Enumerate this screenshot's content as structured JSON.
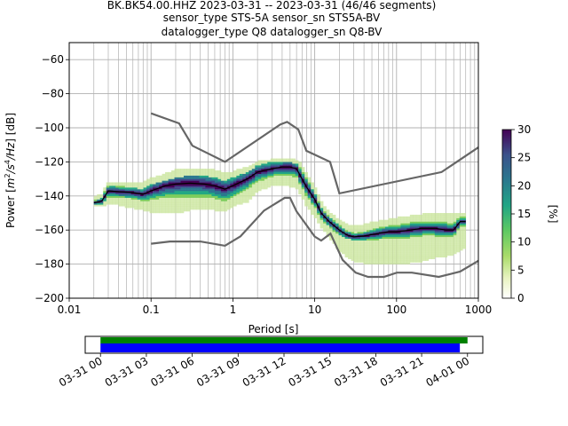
{
  "header": {
    "title_lines": [
      "BK.BK54.00.HHZ   2023-03-31 -- 2023-03-31  (46/46 segments)",
      "sensor_type STS-5A sensor_sn STS5A-BV",
      "datalogger_type Q8 datalogger_sn Q8-BV"
    ]
  },
  "chart_data": [
    {
      "type": "heatmap",
      "xlabel": "Period [s]",
      "ylabel_parts": [
        "Power [",
        "m",
        "2",
        "/s",
        "4",
        "/Hz",
        "] [dB]"
      ],
      "x_scale": "log",
      "xlim": [
        0.01,
        1000
      ],
      "ylim": [
        -200,
        -50
      ],
      "x_ticks": [
        {
          "value": 0.01,
          "label": "0.01"
        },
        {
          "value": 0.1,
          "label": "0.1"
        },
        {
          "value": 1,
          "label": "1"
        },
        {
          "value": 10,
          "label": "10"
        },
        {
          "value": 100,
          "label": "100"
        },
        {
          "value": 1000,
          "label": "1000"
        }
      ],
      "y_ticks": [
        {
          "value": -60,
          "label": "−60"
        },
        {
          "value": -80,
          "label": "−80"
        },
        {
          "value": -100,
          "label": "−100"
        },
        {
          "value": -120,
          "label": "−120"
        },
        {
          "value": -140,
          "label": "−140"
        },
        {
          "value": -160,
          "label": "−160"
        },
        {
          "value": -180,
          "label": "−180"
        },
        {
          "value": -200,
          "label": "−200"
        }
      ],
      "grid": true,
      "colorscale": [
        "#ffffff",
        "#c8e49a",
        "#7ccd5c",
        "#22a884",
        "#2a788e",
        "#414487",
        "#440154"
      ],
      "noise_model_color": "#666666",
      "high_noise_model": {
        "x": [
          0.1,
          0.22,
          0.32,
          0.8,
          3.8,
          4.6,
          6.3,
          7.9,
          15.4,
          20,
          354.8,
          1000
        ],
        "y": [
          -91.5,
          -97.4,
          -110.5,
          -120,
          -98,
          -96.5,
          -101,
          -113.5,
          -120,
          -138.5,
          -126,
          -111.5
        ]
      },
      "low_noise_model": {
        "x": [
          0.1,
          0.17,
          0.4,
          0.8,
          1.24,
          2.4,
          4.3,
          5,
          6,
          10,
          12,
          15.6,
          21.9,
          31.6,
          45,
          70,
          101,
          154,
          328,
          600,
          1000
        ],
        "y": [
          -168,
          -166.7,
          -166.7,
          -169.2,
          -163.7,
          -148.6,
          -141.1,
          -141.1,
          -149,
          -163.8,
          -166.2,
          -162.1,
          -177.5,
          -185,
          -187.5,
          -187.5,
          -185,
          -185,
          -187.5,
          -184.4,
          -178
        ]
      },
      "mode_curve": {
        "x": [
          0.02,
          0.025,
          0.03,
          0.04,
          0.06,
          0.08,
          0.1,
          0.15,
          0.2,
          0.3,
          0.45,
          0.6,
          0.8,
          1,
          1.5,
          2,
          3,
          4,
          5,
          6,
          7,
          8,
          10,
          12,
          15,
          20,
          25,
          30,
          40,
          60,
          80,
          100,
          150,
          200,
          300,
          400,
          500,
          600,
          700
        ],
        "y": [
          -144,
          -143,
          -137,
          -137.5,
          -138,
          -139,
          -137,
          -134,
          -133,
          -132.5,
          -133,
          -134,
          -136,
          -134,
          -130,
          -126,
          -124,
          -123,
          -123,
          -124,
          -130,
          -135,
          -142,
          -150,
          -155,
          -160,
          -163,
          -164,
          -163.5,
          -162,
          -161,
          -161,
          -160,
          -159,
          -159,
          -160,
          -160,
          -155,
          -155
        ]
      },
      "band_x": [
        0.02,
        0.025,
        0.03,
        0.04,
        0.06,
        0.08,
        0.1,
        0.15,
        0.2,
        0.3,
        0.45,
        0.6,
        0.8,
        1,
        1.5,
        2,
        3,
        4,
        5,
        6,
        7,
        8,
        10,
        12,
        15,
        20,
        25,
        30,
        40,
        60,
        80,
        100,
        150,
        200,
        300,
        400,
        500,
        600,
        700
      ],
      "band_low": [
        -145,
        -145,
        -142,
        -142,
        -143,
        -145,
        -145,
        -146,
        -147,
        -146,
        -145,
        -146,
        -147,
        -144,
        -140,
        -134,
        -131,
        -130,
        -131,
        -132,
        -137,
        -142,
        -148,
        -154,
        -159,
        -163,
        -165,
        -166,
        -166,
        -166,
        -165,
        -165,
        -165,
        -164,
        -164,
        -164,
        -164,
        -158,
        -158
      ],
      "band_high": [
        -142,
        -140,
        -134,
        -134,
        -135,
        -136,
        -133,
        -131,
        -129,
        -128,
        -128,
        -129,
        -131,
        -129,
        -126,
        -122,
        -120,
        -120,
        -120,
        -121,
        -125,
        -130,
        -138,
        -146,
        -152,
        -156,
        -159,
        -161,
        -160,
        -158,
        -157,
        -156,
        -155,
        -154,
        -154,
        -154,
        -154,
        -152,
        -152
      ],
      "faint_spread_low": [
        -146,
        -146,
        -144,
        -145,
        -147,
        -148,
        -149,
        -150,
        -150,
        -148,
        -147,
        -148,
        -149,
        -146,
        -143,
        -137,
        -134,
        -133,
        -134,
        -135,
        -140,
        -146,
        -152,
        -158,
        -164,
        -172,
        -176,
        -178,
        -179,
        -180,
        -180,
        -180,
        -179,
        -178,
        -176,
        -175,
        -174,
        -172,
        -170
      ],
      "faint_spread_high": [
        -141,
        -139,
        -132,
        -132,
        -132,
        -132,
        -130,
        -127,
        -125,
        -124,
        -124,
        -125,
        -127,
        -126,
        -123,
        -120,
        -119,
        -118,
        -118,
        -119,
        -122,
        -127,
        -135,
        -143,
        -150,
        -154,
        -157,
        -158,
        -157,
        -155,
        -154,
        -153,
        -152,
        -151,
        -150,
        -150,
        -150,
        -150,
        -150
      ]
    },
    {
      "type": "colorbar",
      "label": "[%]",
      "range": [
        0,
        30
      ],
      "ticks": [
        {
          "value": 0,
          "label": "0"
        },
        {
          "value": 5,
          "label": "5"
        },
        {
          "value": 10,
          "label": "10"
        },
        {
          "value": 15,
          "label": "15"
        },
        {
          "value": 20,
          "label": "20"
        },
        {
          "value": 25,
          "label": "25"
        },
        {
          "value": 30,
          "label": "30"
        }
      ]
    },
    {
      "type": "timeline",
      "x_range_hours": [
        -1,
        25
      ],
      "bars": [
        {
          "name": "data",
          "color": "#008000",
          "start_hour": 0,
          "end_hour": 24
        },
        {
          "name": "psd",
          "color": "#0000ff",
          "start_hour": 0,
          "end_hour": 23.5
        }
      ],
      "ticks": [
        {
          "hour": 0,
          "label": "03-31 00"
        },
        {
          "hour": 3,
          "label": "03-31 03"
        },
        {
          "hour": 6,
          "label": "03-31 06"
        },
        {
          "hour": 9,
          "label": "03-31 09"
        },
        {
          "hour": 12,
          "label": "03-31 12"
        },
        {
          "hour": 15,
          "label": "03-31 15"
        },
        {
          "hour": 18,
          "label": "03-31 18"
        },
        {
          "hour": 21,
          "label": "03-31 21"
        },
        {
          "hour": 24,
          "label": "04-01 00"
        }
      ]
    }
  ]
}
